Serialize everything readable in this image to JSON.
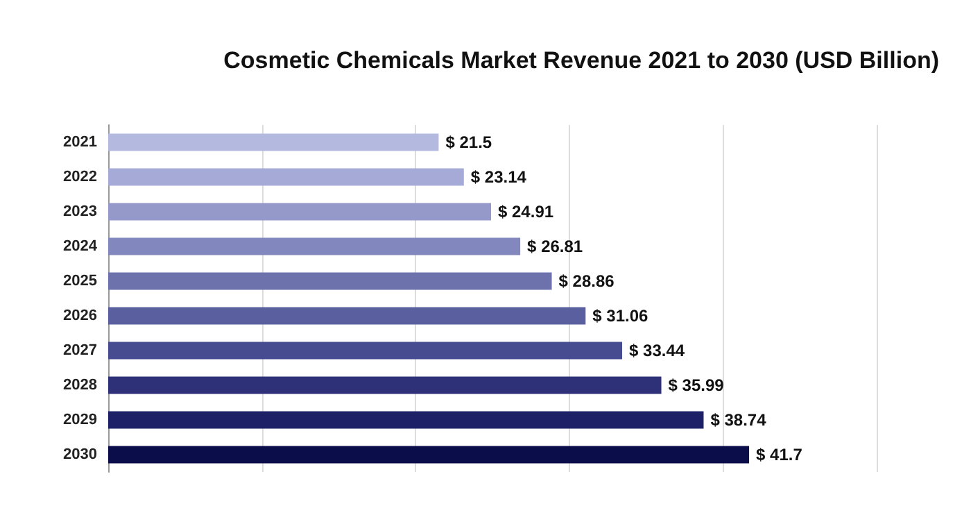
{
  "chart_data": {
    "type": "bar",
    "orientation": "horizontal",
    "title": "Cosmetic Chemicals Market Revenue 2021 to 2030 (USD Billion)",
    "categories": [
      "2021",
      "2022",
      "2023",
      "2024",
      "2025",
      "2026",
      "2027",
      "2028",
      "2029",
      "2030"
    ],
    "values": [
      21.5,
      23.14,
      24.91,
      26.81,
      28.86,
      31.06,
      33.44,
      35.99,
      38.74,
      41.7
    ],
    "value_labels": [
      "$ 21.5",
      "$ 23.14",
      "$ 24.91",
      "$ 26.81",
      "$ 28.86",
      "$ 31.06",
      "$ 33.44",
      "$ 35.99",
      "$ 38.74",
      "$ 41.7"
    ],
    "colors": [
      "#b4b9e0",
      "#a5aad6",
      "#9499c9",
      "#8287bd",
      "#6d72ad",
      "#5a5fa0",
      "#474b8f",
      "#2e3178",
      "#1d2066",
      "#0b0c4a"
    ],
    "relative": false,
    "grid": "x"
  }
}
